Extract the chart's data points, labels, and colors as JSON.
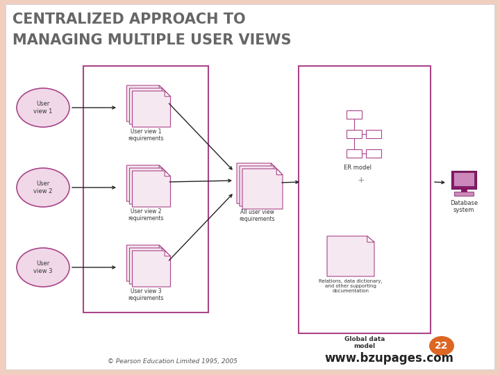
{
  "title_line1": "CENTRALIZED APPROACH TO",
  "title_line2": "MANAGING MULTIPLE USER VIEWS",
  "title_color": "#666666",
  "title_fontsize": 15,
  "bg_color": "#f0cfc0",
  "slide_bg": "#ffffff",
  "border_color": "#aa4488",
  "ellipse_fill": "#f0d8e8",
  "ellipse_border": "#aa4488",
  "doc_fill": "#f5e8f0",
  "doc_border": "#aa4488",
  "er_box_border": "#aa4488",
  "arrow_color": "#222222",
  "text_color": "#333333",
  "footer_text": "© Pearson Education Limited 1995, 2005",
  "website_text": "www.bzupages.com",
  "slide_number": "22",
  "slide_number_bg": "#dd6622",
  "user_views": [
    "User\nview 1",
    "User\nview 2",
    "User\nview 3"
  ],
  "user_req_labels": [
    "User view 1\nrequirements",
    "User view 2\nrequirements",
    "User view 3\nrequirements"
  ],
  "all_req_label": "All user view\nrequirements",
  "er_model_label": "ER model",
  "global_label": "Global data\nmodel",
  "relations_label": "Relations, data dictionary,\nand other supporting\ndocumentation",
  "db_label": "Database\nsystem",
  "plus_sign": "+"
}
